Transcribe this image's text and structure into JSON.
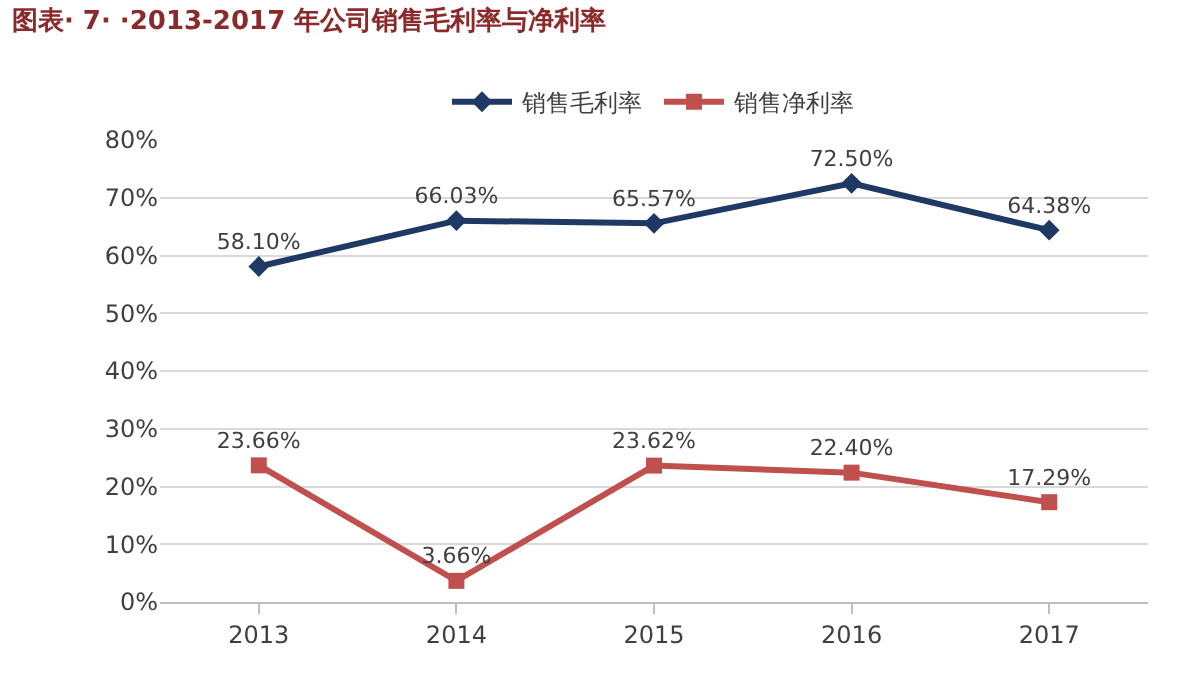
{
  "chart_data": {
    "type": "line",
    "title": "图表· 7· ·2013-2017 年公司销售毛利率与净利率",
    "categories": [
      "2013",
      "2014",
      "2015",
      "2016",
      "2017"
    ],
    "series": [
      {
        "name": "销售毛利率",
        "color": "#1f3864",
        "marker": "diamond",
        "values": [
          58.1,
          66.03,
          65.57,
          72.5,
          64.38
        ],
        "value_labels": [
          "58.10%",
          "66.03%",
          "65.57%",
          "72.50%",
          "64.38%"
        ]
      },
      {
        "name": "销售净利率",
        "color": "#c0504d",
        "marker": "square",
        "values": [
          23.66,
          3.66,
          23.62,
          22.4,
          17.29
        ],
        "value_labels": [
          "23.66%",
          "3.66%",
          "23.62%",
          "22.40%",
          "17.29%"
        ]
      }
    ],
    "ylim": [
      0,
      80
    ],
    "yticks": [
      {
        "value": 0,
        "label": "0%"
      },
      {
        "value": 10,
        "label": "10%"
      },
      {
        "value": 20,
        "label": "20%"
      },
      {
        "value": 30,
        "label": "30%"
      },
      {
        "value": 40,
        "label": "40%"
      },
      {
        "value": 50,
        "label": "50%"
      },
      {
        "value": 60,
        "label": "60%"
      },
      {
        "value": 70,
        "label": "70%"
      },
      {
        "value": 80,
        "label": "80%"
      }
    ],
    "grid": "y",
    "legend": "top",
    "line_style": "solid"
  }
}
